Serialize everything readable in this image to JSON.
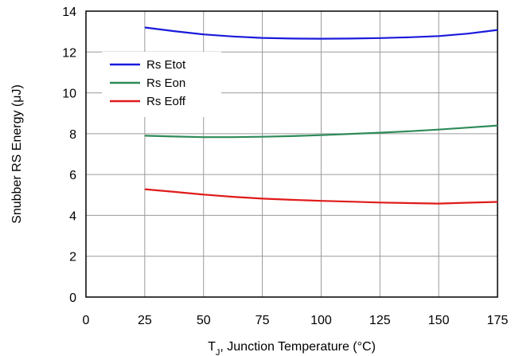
{
  "chart_data": {
    "type": "line",
    "xlabel": {
      "prefix": "T",
      "sub": "J",
      "rest": ", Junction Temperature (°C)"
    },
    "ylabel": "Snubber RS Energy (μJ)",
    "xlim": [
      0,
      175
    ],
    "ylim": [
      0,
      14
    ],
    "xticks": [
      "0",
      "25",
      "50",
      "75",
      "100",
      "125",
      "150",
      "175"
    ],
    "yticks": [
      "0",
      "2",
      "4",
      "6",
      "8",
      "10",
      "12",
      "14"
    ],
    "grid": true,
    "legend_position": "top-left",
    "series": [
      {
        "name": "Rs Etot",
        "color": "#1a1adc",
        "x": [
          25,
          37.5,
          50,
          62.5,
          75,
          87.5,
          100,
          112.5,
          125,
          137.5,
          150,
          162.5,
          175
        ],
        "y": [
          13.2,
          13.02,
          12.86,
          12.76,
          12.69,
          12.66,
          12.65,
          12.66,
          12.68,
          12.72,
          12.78,
          12.9,
          13.08
        ]
      },
      {
        "name": "Rs Eon",
        "color": "#2e8b57",
        "x": [
          25,
          37.5,
          50,
          62.5,
          75,
          87.5,
          100,
          112.5,
          125,
          137.5,
          150,
          162.5,
          175
        ],
        "y": [
          7.9,
          7.86,
          7.83,
          7.83,
          7.85,
          7.88,
          7.93,
          7.99,
          8.05,
          8.12,
          8.2,
          8.3,
          8.4
        ]
      },
      {
        "name": "Rs Eoff",
        "color": "#e01a1a",
        "x": [
          25,
          37.5,
          50,
          62.5,
          75,
          87.5,
          100,
          112.5,
          125,
          137.5,
          150,
          162.5,
          175
        ],
        "y": [
          5.28,
          5.15,
          5.02,
          4.91,
          4.82,
          4.76,
          4.71,
          4.67,
          4.63,
          4.6,
          4.58,
          4.62,
          4.66
        ]
      }
    ]
  }
}
